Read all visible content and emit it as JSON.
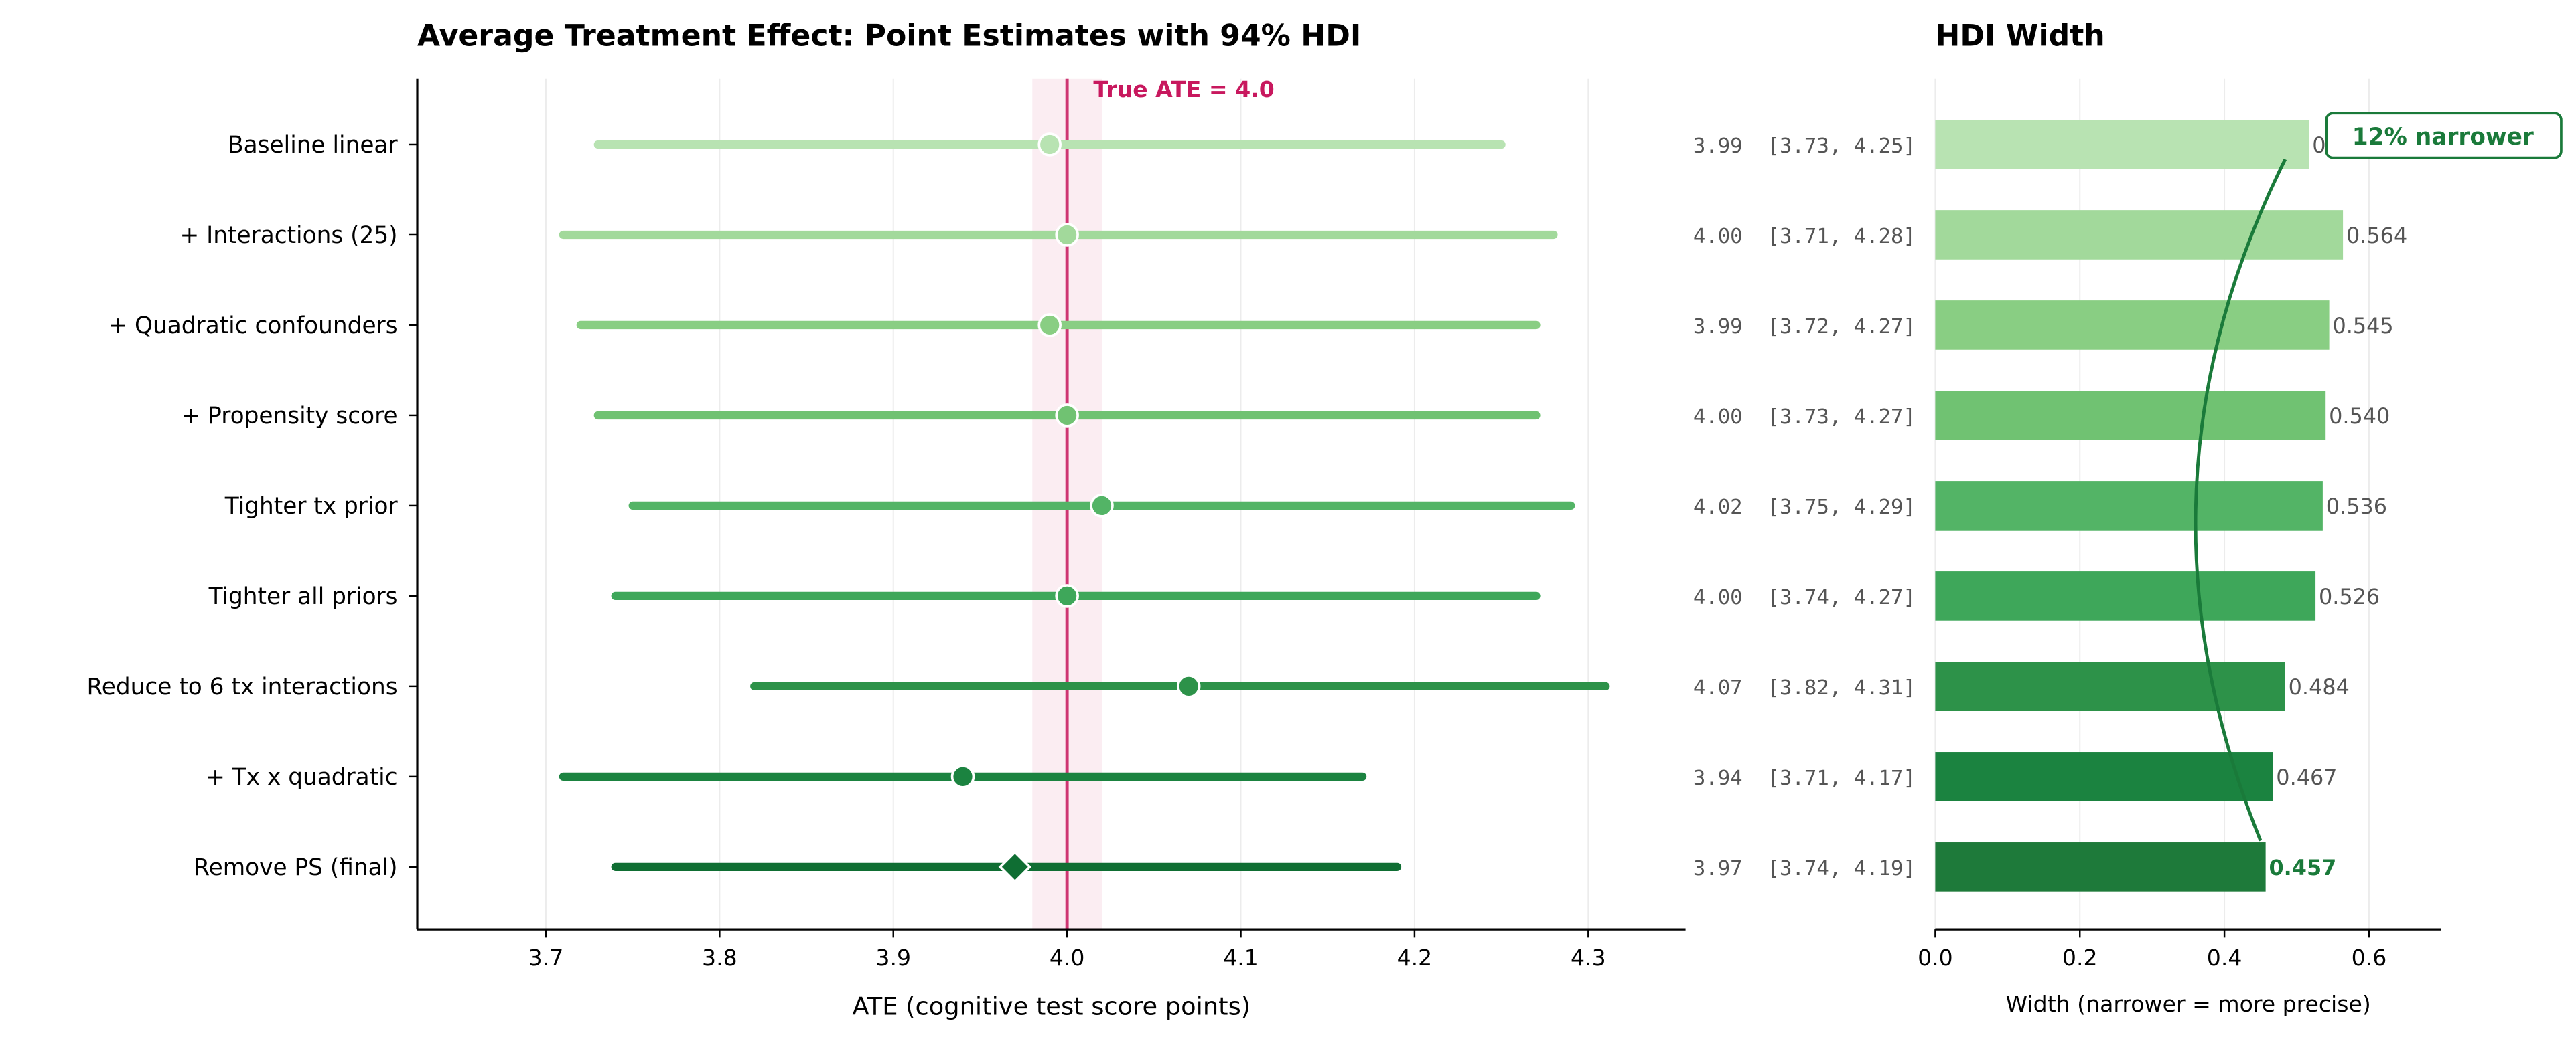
{
  "chart_data": [
    {
      "type": "forest",
      "title": "Average Treatment Effect: Point Estimates with 94% HDI",
      "xlabel": "ATE (cognitive test score points)",
      "xlim": [
        3.626,
        4.356
      ],
      "xticks": [
        3.7,
        3.8,
        3.9,
        4.0,
        4.1,
        4.2,
        4.3
      ],
      "xtick_labels": [
        "3.7",
        "3.8",
        "3.9",
        "4.0",
        "4.1",
        "4.2",
        "4.3"
      ],
      "grid": "x",
      "reference": {
        "value": 4.0,
        "band": [
          3.98,
          4.02
        ],
        "label": "True ATE = 4.0",
        "color": "#c8185e"
      },
      "rows": [
        {
          "label": "Baseline linear",
          "mean": 3.99,
          "lo": 3.73,
          "hi": 4.25,
          "text": "3.99  [3.73, 4.25]",
          "color": "#b8e3b2",
          "marker": "circle"
        },
        {
          "label": "+ Interactions (25)",
          "mean": 4.0,
          "lo": 3.71,
          "hi": 4.28,
          "text": "4.00  [3.71, 4.28]",
          "color": "#a2d99b",
          "marker": "circle"
        },
        {
          "label": "+ Quadratic confounders",
          "mean": 3.99,
          "lo": 3.72,
          "hi": 4.27,
          "text": "3.99  [3.72, 4.27]",
          "color": "#89ce83",
          "marker": "circle"
        },
        {
          "label": "+ Propensity score",
          "mean": 4.0,
          "lo": 3.73,
          "hi": 4.27,
          "text": "4.00  [3.73, 4.27]",
          "color": "#70c272",
          "marker": "circle"
        },
        {
          "label": "Tighter tx prior",
          "mean": 4.02,
          "lo": 3.75,
          "hi": 4.29,
          "text": "4.02  [3.75, 4.29]",
          "color": "#53b466",
          "marker": "circle"
        },
        {
          "label": "Tighter all priors",
          "mean": 4.0,
          "lo": 3.74,
          "hi": 4.27,
          "text": "4.00  [3.74, 4.27]",
          "color": "#3ea75a",
          "marker": "circle"
        },
        {
          "label": "Reduce to 6 tx interactions",
          "mean": 4.07,
          "lo": 3.82,
          "hi": 4.31,
          "text": "4.07  [3.82, 4.31]",
          "color": "#2d9249",
          "marker": "circle"
        },
        {
          "label": "+ Tx x quadratic",
          "mean": 3.94,
          "lo": 3.71,
          "hi": 4.17,
          "text": "3.94  [3.71, 4.17]",
          "color": "#1b8340",
          "marker": "circle"
        },
        {
          "label": "Remove PS (final)",
          "mean": 3.97,
          "lo": 3.74,
          "hi": 4.19,
          "text": "3.97  [3.74, 4.19]",
          "color": "#0f6e33",
          "marker": "diamond"
        }
      ]
    },
    {
      "type": "bar",
      "orientation": "horizontal",
      "title": "HDI Width",
      "xlabel": "Width (narrower = more precise)",
      "xlim": [
        0,
        0.7
      ],
      "xticks": [
        0,
        0.2,
        0.4,
        0.6
      ],
      "xtick_labels": [
        "0.0",
        "0.2",
        "0.4",
        "0.6"
      ],
      "grid": "x",
      "values": [
        0.517,
        0.564,
        0.545,
        0.54,
        0.536,
        0.526,
        0.484,
        0.467,
        0.457
      ],
      "value_labels": [
        "0.517",
        "0.564",
        "0.545",
        "0.540",
        "0.536",
        "0.526",
        "0.484",
        "0.467",
        "0.457"
      ],
      "colors": [
        "#b8e3b2",
        "#a2d99b",
        "#89ce83",
        "#70c272",
        "#53b466",
        "#3ea75a",
        "#2d9249",
        "#1b8340",
        "#1e7a3a"
      ],
      "annotation": {
        "text": "12% narrower",
        "color": "#1a7a3a",
        "from_row": 0,
        "to_row": 8
      }
    }
  ]
}
